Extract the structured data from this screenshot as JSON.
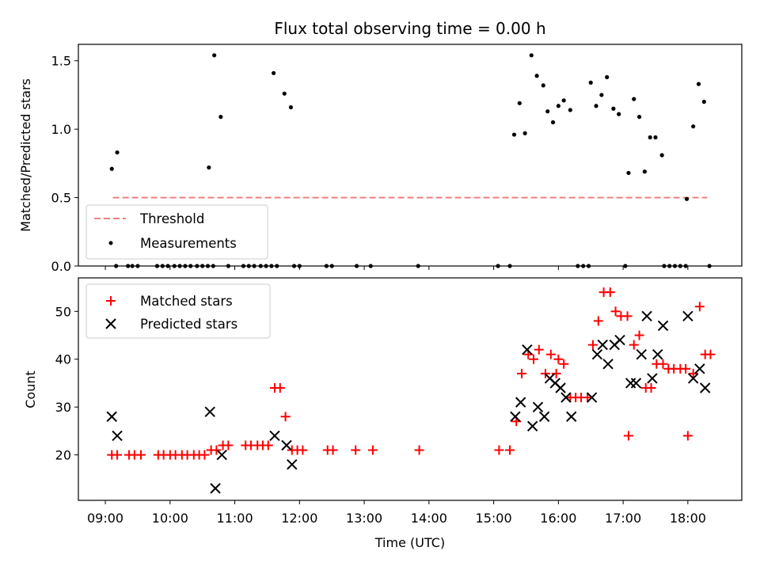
{
  "chart_data": [
    {
      "type": "scatter",
      "title": "Flux total observing time = 0.00 h",
      "xlabel": "",
      "ylabel": "Matched/Predicted stars",
      "xlim": [
        "08:35",
        "18:50"
      ],
      "ylim": [
        0,
        1.62
      ],
      "yticks": [
        0.0,
        0.5,
        1.0,
        1.5
      ],
      "ytick_labels": [
        "0.0",
        "0.5",
        "1.0",
        "1.5"
      ],
      "legend_position": "lower-left",
      "series": [
        {
          "name": "Threshold",
          "kind": "dashed-line",
          "color": "#f08080",
          "x": [
            "09:07",
            "18:18"
          ],
          "y": [
            0.5,
            0.5
          ]
        },
        {
          "name": "Measurements",
          "kind": "dots",
          "color": "#000000",
          "points": [
            [
              "09:06",
              0.71
            ],
            [
              "09:11",
              0.83
            ],
            [
              "10:36",
              0.72
            ],
            [
              "10:41",
              1.54
            ],
            [
              "10:47",
              1.09
            ],
            [
              "11:36",
              1.41
            ],
            [
              "11:46",
              1.26
            ],
            [
              "11:52",
              1.16
            ],
            [
              "15:19",
              0.96
            ],
            [
              "15:24",
              1.19
            ],
            [
              "15:29",
              0.97
            ],
            [
              "15:35",
              1.54
            ],
            [
              "15:40",
              1.39
            ],
            [
              "15:46",
              1.32
            ],
            [
              "15:50",
              1.13
            ],
            [
              "15:55",
              1.05
            ],
            [
              "16:00",
              1.17
            ],
            [
              "16:05",
              1.21
            ],
            [
              "16:11",
              1.14
            ],
            [
              "16:30",
              1.34
            ],
            [
              "16:35",
              1.17
            ],
            [
              "16:40",
              1.25
            ],
            [
              "16:45",
              1.38
            ],
            [
              "16:51",
              1.15
            ],
            [
              "16:56",
              1.11
            ],
            [
              "17:05",
              0.68
            ],
            [
              "17:10",
              1.22
            ],
            [
              "17:15",
              1.09
            ],
            [
              "17:20",
              0.69
            ],
            [
              "17:25",
              0.94
            ],
            [
              "17:30",
              0.94
            ],
            [
              "17:36",
              0.81
            ],
            [
              "17:59",
              0.49
            ],
            [
              "18:05",
              1.02
            ],
            [
              "18:10",
              1.33
            ],
            [
              "18:15",
              1.2
            ],
            [
              "09:10",
              0
            ],
            [
              "09:21",
              0
            ],
            [
              "09:25",
              0
            ],
            [
              "09:30",
              0
            ],
            [
              "09:48",
              0
            ],
            [
              "09:53",
              0
            ],
            [
              "09:58",
              0
            ],
            [
              "10:04",
              0
            ],
            [
              "10:09",
              0
            ],
            [
              "10:14",
              0
            ],
            [
              "10:19",
              0
            ],
            [
              "10:25",
              0
            ],
            [
              "10:30",
              0
            ],
            [
              "10:35",
              0
            ],
            [
              "10:40",
              0
            ],
            [
              "10:54",
              0
            ],
            [
              "11:08",
              0
            ],
            [
              "11:13",
              0
            ],
            [
              "11:18",
              0
            ],
            [
              "11:24",
              0
            ],
            [
              "11:29",
              0
            ],
            [
              "11:34",
              0
            ],
            [
              "11:39",
              0
            ],
            [
              "11:55",
              0
            ],
            [
              "12:00",
              0
            ],
            [
              "12:25",
              0
            ],
            [
              "12:30",
              0
            ],
            [
              "12:53",
              0
            ],
            [
              "13:06",
              0
            ],
            [
              "13:50",
              0
            ],
            [
              "15:04",
              0
            ],
            [
              "15:15",
              0
            ],
            [
              "16:18",
              0
            ],
            [
              "16:23",
              0
            ],
            [
              "16:28",
              0
            ],
            [
              "17:02",
              0
            ],
            [
              "17:38",
              0
            ],
            [
              "17:43",
              0
            ],
            [
              "17:48",
              0
            ],
            [
              "17:53",
              0
            ],
            [
              "17:58",
              0
            ],
            [
              "18:20",
              0
            ]
          ]
        }
      ]
    },
    {
      "type": "scatter",
      "title": "",
      "xlabel": "Time (UTC)",
      "ylabel": "Count",
      "xlim": [
        "08:35",
        "18:50"
      ],
      "ylim": [
        10.5,
        57
      ],
      "yticks": [
        20,
        30,
        40,
        50
      ],
      "ytick_labels": [
        "20",
        "30",
        "40",
        "50"
      ],
      "xticks": [
        "09:00",
        "10:00",
        "11:00",
        "12:00",
        "13:00",
        "14:00",
        "15:00",
        "16:00",
        "17:00",
        "18:00"
      ],
      "xtick_labels": [
        "09:00",
        "10:00",
        "11:00",
        "12:00",
        "13:00",
        "14:00",
        "15:00",
        "16:00",
        "17:00",
        "18:00"
      ],
      "legend_position": "upper-left",
      "series": [
        {
          "name": "Matched stars",
          "kind": "plus",
          "color": "#ff0000",
          "points": [
            [
              "09:06",
              20
            ],
            [
              "09:11",
              20
            ],
            [
              "09:22",
              20
            ],
            [
              "09:27",
              20
            ],
            [
              "09:33",
              20
            ],
            [
              "09:49",
              20
            ],
            [
              "09:54",
              20
            ],
            [
              "10:00",
              20
            ],
            [
              "10:05",
              20
            ],
            [
              "10:11",
              20
            ],
            [
              "10:16",
              20
            ],
            [
              "10:22",
              20
            ],
            [
              "10:27",
              20
            ],
            [
              "10:32",
              20
            ],
            [
              "10:38",
              21
            ],
            [
              "10:43",
              21
            ],
            [
              "10:49",
              22
            ],
            [
              "10:54",
              22
            ],
            [
              "11:10",
              22
            ],
            [
              "11:15",
              22
            ],
            [
              "11:21",
              22
            ],
            [
              "11:26",
              22
            ],
            [
              "11:31",
              22
            ],
            [
              "11:37",
              34
            ],
            [
              "11:42",
              34
            ],
            [
              "11:47",
              28
            ],
            [
              "11:53",
              21
            ],
            [
              "11:58",
              21
            ],
            [
              "12:03",
              21
            ],
            [
              "12:26",
              21
            ],
            [
              "12:31",
              21
            ],
            [
              "12:52",
              21
            ],
            [
              "13:08",
              21
            ],
            [
              "13:51",
              21
            ],
            [
              "15:05",
              21
            ],
            [
              "15:15",
              21
            ],
            [
              "15:21",
              27
            ],
            [
              "15:26",
              37
            ],
            [
              "15:32",
              41
            ],
            [
              "15:37",
              40
            ],
            [
              "15:42",
              42
            ],
            [
              "15:48",
              37
            ],
            [
              "15:53",
              41
            ],
            [
              "15:58",
              37
            ],
            [
              "16:00",
              40
            ],
            [
              "16:05",
              39
            ],
            [
              "16:11",
              32
            ],
            [
              "16:16",
              32
            ],
            [
              "16:21",
              32
            ],
            [
              "16:27",
              32
            ],
            [
              "16:32",
              43
            ],
            [
              "16:37",
              48
            ],
            [
              "16:42",
              54
            ],
            [
              "16:48",
              54
            ],
            [
              "16:53",
              50
            ],
            [
              "16:58",
              49
            ],
            [
              "17:04",
              49
            ],
            [
              "17:05",
              24
            ],
            [
              "17:10",
              43
            ],
            [
              "17:15",
              45
            ],
            [
              "17:21",
              34
            ],
            [
              "17:26",
              34
            ],
            [
              "17:31",
              39
            ],
            [
              "17:37",
              39
            ],
            [
              "17:42",
              38
            ],
            [
              "17:47",
              38
            ],
            [
              "17:53",
              38
            ],
            [
              "17:58",
              38
            ],
            [
              "18:00",
              24
            ],
            [
              "18:05",
              37
            ],
            [
              "18:11",
              51
            ],
            [
              "18:16",
              41
            ],
            [
              "18:21",
              41
            ]
          ]
        },
        {
          "name": "Predicted stars",
          "kind": "x",
          "color": "#000000",
          "points": [
            [
              "09:06",
              28
            ],
            [
              "09:11",
              24
            ],
            [
              "10:37",
              29
            ],
            [
              "10:42",
              13
            ],
            [
              "10:48",
              20
            ],
            [
              "11:37",
              24
            ],
            [
              "11:48",
              22
            ],
            [
              "11:53",
              18
            ],
            [
              "15:20",
              28
            ],
            [
              "15:25",
              31
            ],
            [
              "15:31",
              42
            ],
            [
              "15:36",
              26
            ],
            [
              "15:41",
              30
            ],
            [
              "15:47",
              28
            ],
            [
              "15:52",
              36
            ],
            [
              "15:57",
              35
            ],
            [
              "16:02",
              34
            ],
            [
              "16:07",
              32
            ],
            [
              "16:12",
              28
            ],
            [
              "16:31",
              32
            ],
            [
              "16:36",
              41
            ],
            [
              "16:41",
              43
            ],
            [
              "16:46",
              39
            ],
            [
              "16:52",
              43
            ],
            [
              "16:57",
              44
            ],
            [
              "17:07",
              35
            ],
            [
              "17:12",
              35
            ],
            [
              "17:17",
              41
            ],
            [
              "17:22",
              49
            ],
            [
              "17:27",
              36
            ],
            [
              "17:32",
              41
            ],
            [
              "17:37",
              47
            ],
            [
              "18:00",
              49
            ],
            [
              "18:05",
              36
            ],
            [
              "18:11",
              38
            ],
            [
              "18:16",
              34
            ]
          ]
        }
      ]
    }
  ]
}
